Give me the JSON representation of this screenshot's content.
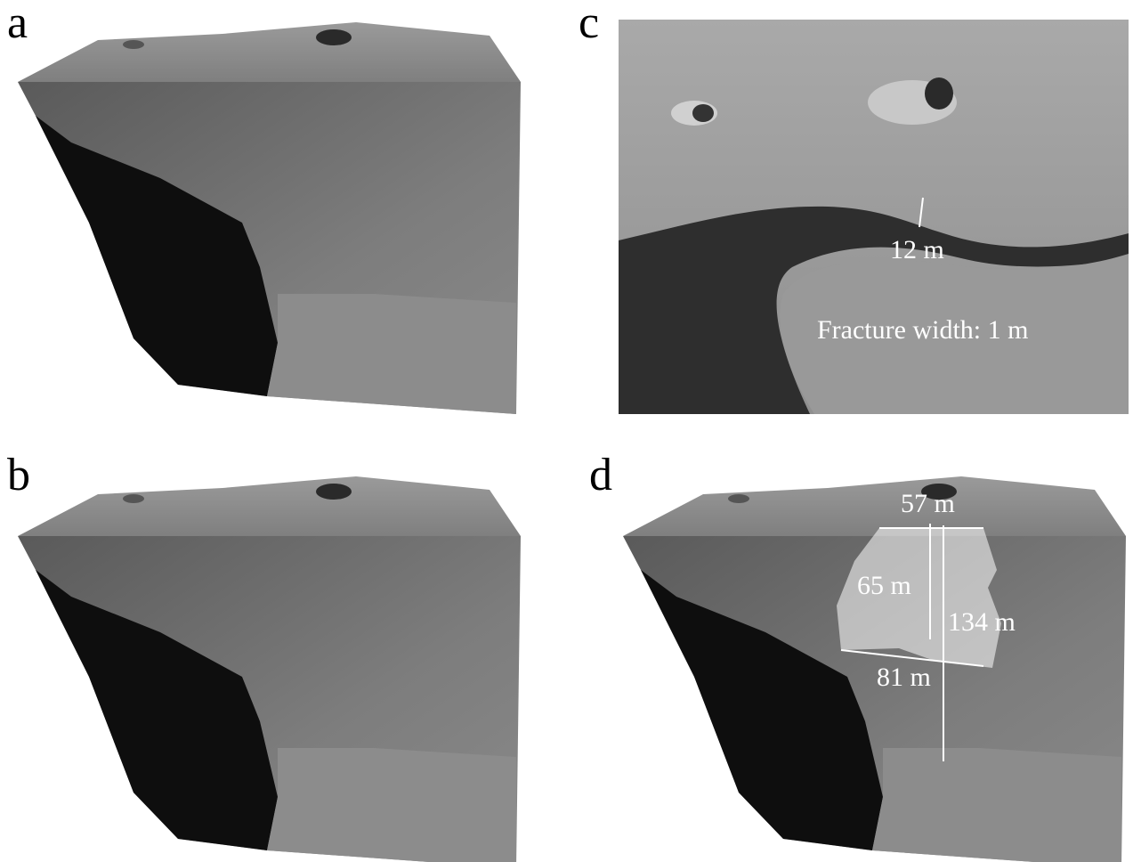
{
  "panels": [
    {
      "label": "a"
    },
    {
      "label": "b"
    },
    {
      "label": "c",
      "annotations": [
        "12 m",
        "Fracture width: 1 m"
      ]
    },
    {
      "label": "d",
      "annotations": [
        "57 m",
        "65 m",
        "134 m",
        "81 m"
      ]
    }
  ]
}
